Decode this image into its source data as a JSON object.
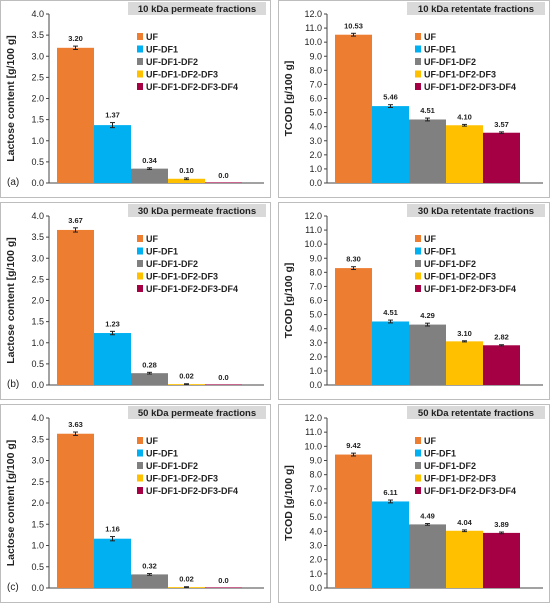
{
  "colors": {
    "UF": "#ED7D31",
    "UF-DF1": "#00B0F0",
    "UF-DF1-DF2": "#808080",
    "UF-DF1-DF2-DF3": "#FFC000",
    "UF-DF1-DF2-DF3-DF4": "#A50044"
  },
  "chart_data": [
    {
      "type": "bar",
      "panel_label": "(a)",
      "title": "10 kDa permeate fractions",
      "ylabel": "Lactose content [g/100 g]",
      "xlabel": "",
      "ylim": [
        0,
        4.0
      ],
      "ystep": 0.5,
      "decimals": 1,
      "categories": [
        "UF",
        "UF-DF1",
        "UF-DF1-DF2",
        "UF-DF1-DF2-DF3",
        "UF-DF1-DF2-DF3-DF4"
      ],
      "values": [
        3.2,
        1.37,
        0.34,
        0.1,
        0.0
      ],
      "errors": [
        0.04,
        0.06,
        0.02,
        0.02,
        0.0
      ],
      "labels": [
        "3.20",
        "1.37",
        "0.34",
        "0.10",
        "0.0"
      ],
      "legend": "top-right"
    },
    {
      "type": "bar",
      "panel_label": "",
      "title": "10 kDa retentate fractions",
      "ylabel": "TCOD [g/100 g]",
      "xlabel": "",
      "ylim": [
        0,
        12.0
      ],
      "ystep": 1.0,
      "decimals": 1,
      "categories": [
        "UF",
        "UF-DF1",
        "UF-DF1-DF2",
        "UF-DF1-DF2-DF3",
        "UF-DF1-DF2-DF3-DF4"
      ],
      "values": [
        10.53,
        5.46,
        4.51,
        4.1,
        3.57
      ],
      "errors": [
        0.1,
        0.1,
        0.1,
        0.06,
        0.06
      ],
      "labels": [
        "10.53",
        "5.46",
        "4.51",
        "4.10",
        "3.57"
      ],
      "legend": "top-right"
    },
    {
      "type": "bar",
      "panel_label": "(b)",
      "title": "30 kDa permeate fractions",
      "ylabel": "Lactose content [g/100 g]",
      "xlabel": "",
      "ylim": [
        0,
        4.0
      ],
      "ystep": 0.5,
      "decimals": 1,
      "categories": [
        "UF",
        "UF-DF1",
        "UF-DF1-DF2",
        "UF-DF1-DF2-DF3",
        "UF-DF1-DF2-DF3-DF4"
      ],
      "values": [
        3.67,
        1.23,
        0.28,
        0.02,
        0.0
      ],
      "errors": [
        0.05,
        0.04,
        0.02,
        0.01,
        0.0
      ],
      "labels": [
        "3.67",
        "1.23",
        "0.28",
        "0.02",
        "0.0"
      ],
      "legend": "top-right"
    },
    {
      "type": "bar",
      "panel_label": "",
      "title": "30 kDa retentate fractions",
      "ylabel": "TCOD [g/100 g]",
      "xlabel": "",
      "ylim": [
        0,
        12.0
      ],
      "ystep": 1.0,
      "decimals": 1,
      "categories": [
        "UF",
        "UF-DF1",
        "UF-DF1-DF2",
        "UF-DF1-DF2-DF3",
        "UF-DF1-DF2-DF3-DF4"
      ],
      "values": [
        8.3,
        4.51,
        4.29,
        3.1,
        2.82
      ],
      "errors": [
        0.1,
        0.1,
        0.1,
        0.04,
        0.04
      ],
      "labels": [
        "8.30",
        "4.51",
        "4.29",
        "3.10",
        "2.82"
      ],
      "legend": "top-right"
    },
    {
      "type": "bar",
      "panel_label": "(c)",
      "title": "50 kDa permeate fractions",
      "ylabel": "Lactose content [g/100 g]",
      "xlabel": "",
      "ylim": [
        0,
        4.0
      ],
      "ystep": 0.5,
      "decimals": 1,
      "categories": [
        "UF",
        "UF-DF1",
        "UF-DF1-DF2",
        "UF-DF1-DF2-DF3",
        "UF-DF1-DF2-DF3-DF4"
      ],
      "values": [
        3.63,
        1.16,
        0.32,
        0.02,
        0.0
      ],
      "errors": [
        0.04,
        0.05,
        0.02,
        0.01,
        0.0
      ],
      "labels": [
        "3.63",
        "1.16",
        "0.32",
        "0.02",
        "0.0"
      ],
      "legend": "top-right"
    },
    {
      "type": "bar",
      "panel_label": "",
      "title": "50 kDa retentate fractions",
      "ylabel": "TCOD [g/100 g]",
      "xlabel": "",
      "ylim": [
        0,
        12.0
      ],
      "ystep": 1.0,
      "decimals": 1,
      "categories": [
        "UF",
        "UF-DF1",
        "UF-DF1-DF2",
        "UF-DF1-DF2-DF3",
        "UF-DF1-DF2-DF3-DF4"
      ],
      "values": [
        9.42,
        6.11,
        4.49,
        4.04,
        3.89
      ],
      "errors": [
        0.1,
        0.1,
        0.06,
        0.06,
        0.06
      ],
      "labels": [
        "9.42",
        "6.11",
        "4.49",
        "4.04",
        "3.89"
      ],
      "legend": "top-right"
    }
  ]
}
